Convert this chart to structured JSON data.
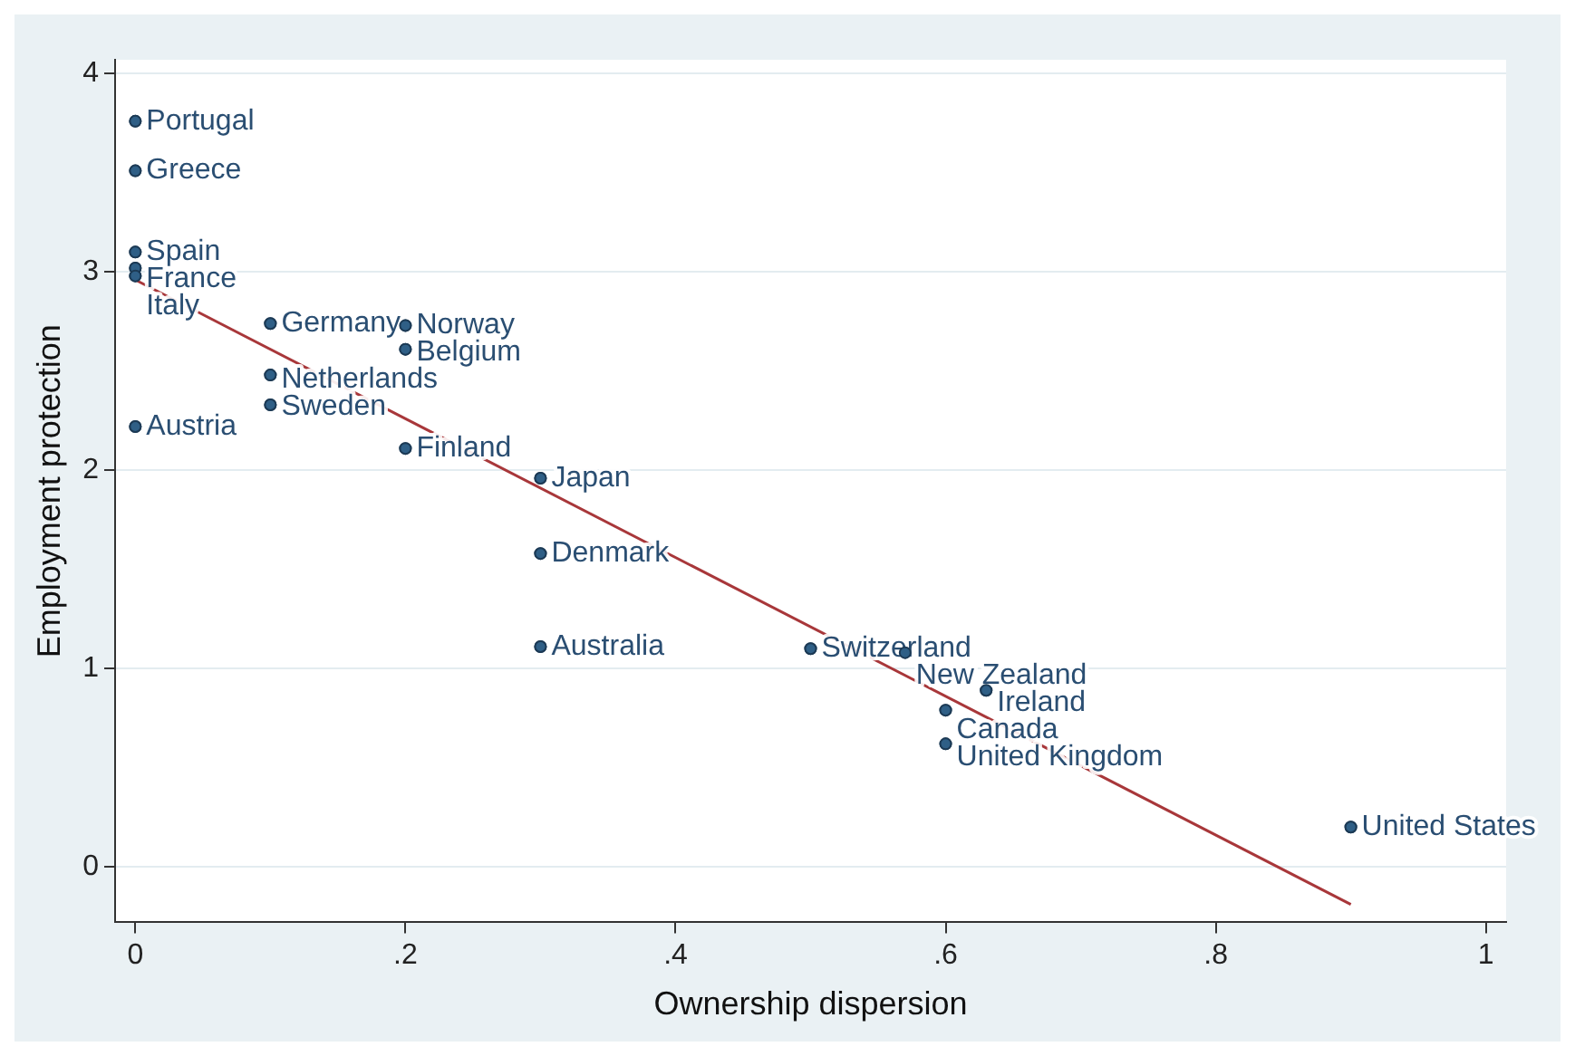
{
  "chart_data": {
    "type": "scatter",
    "xlabel": "Ownership dispersion",
    "ylabel": "Employment protection",
    "xlim": [
      -0.015,
      1.015
    ],
    "ylim": [
      -0.28,
      4.07
    ],
    "xticks": [
      0,
      {
        "value": 0.2,
        "label": ".2"
      },
      {
        "value": 0.4,
        "label": ".4"
      },
      {
        "value": 0.6,
        "label": ".6"
      },
      {
        "value": 0.8,
        "label": ".8"
      },
      1
    ],
    "yticks": [
      0,
      1,
      2,
      3,
      4
    ],
    "grid": "y",
    "legend": false,
    "marker": "circle",
    "series": [
      {
        "type": "scatter",
        "color": "#2f5f86",
        "x": [
          0,
          0,
          0,
          0,
          0,
          0.1,
          0.2,
          0.2,
          0.1,
          0.1,
          0,
          0.2,
          0.3,
          0.3,
          0.3,
          0.5,
          0.57,
          0.63,
          0.6,
          0.6,
          0.9
        ],
        "values": [
          3.76,
          3.51,
          3.1,
          3.02,
          2.98,
          2.74,
          2.73,
          2.61,
          2.48,
          2.33,
          2.22,
          2.11,
          1.96,
          1.58,
          1.11,
          1.1,
          1.08,
          0.89,
          0.79,
          0.62,
          0.2
        ]
      },
      {
        "type": "line",
        "marker": "none",
        "color": "#a8373a",
        "x": [
          0,
          0.9
        ],
        "values": [
          2.96,
          -0.19
        ]
      }
    ],
    "annotations": [
      {
        "text": "Portugal",
        "x": 0,
        "y": 3.76
      },
      {
        "text": "Greece",
        "x": 0,
        "y": 3.51
      },
      {
        "text": "Spain",
        "x": 0,
        "y": 3.1
      },
      {
        "text": "France",
        "x": 0,
        "y": 3.02
      },
      {
        "text": "Italy",
        "x": 0,
        "y": 2.98
      },
      {
        "text": "Germany",
        "x": 0.1,
        "y": 2.74
      },
      {
        "text": "Norway",
        "x": 0.2,
        "y": 2.73
      },
      {
        "text": "Belgium",
        "x": 0.2,
        "y": 2.61
      },
      {
        "text": "Netherlands",
        "x": 0.1,
        "y": 2.48
      },
      {
        "text": "Sweden",
        "x": 0.1,
        "y": 2.33
      },
      {
        "text": "Austria",
        "x": 0,
        "y": 2.22
      },
      {
        "text": "Finland",
        "x": 0.2,
        "y": 2.11
      },
      {
        "text": "Japan",
        "x": 0.3,
        "y": 1.96
      },
      {
        "text": "Denmark",
        "x": 0.3,
        "y": 1.58
      },
      {
        "text": "Australia",
        "x": 0.3,
        "y": 1.11
      },
      {
        "text": "Switzerland",
        "x": 0.5,
        "y": 1.1
      },
      {
        "text": "New Zealand",
        "x": 0.57,
        "y": 1.08
      },
      {
        "text": "Ireland",
        "x": 0.63,
        "y": 0.89
      },
      {
        "text": "Canada",
        "x": 0.6,
        "y": 0.79
      },
      {
        "text": "United Kingdom",
        "x": 0.6,
        "y": 0.62
      },
      {
        "text": "United States",
        "x": 0.9,
        "y": 0.2
      }
    ]
  }
}
